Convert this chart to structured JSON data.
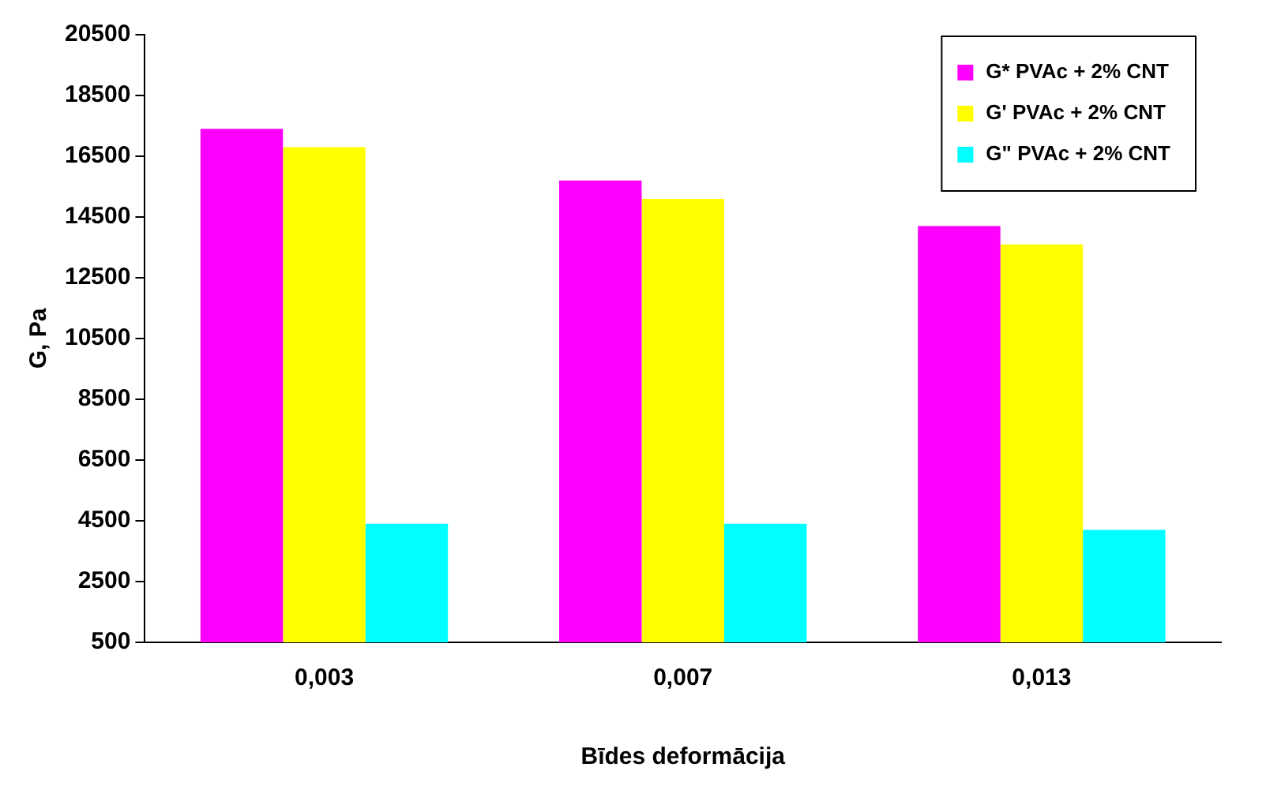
{
  "chart_data": {
    "type": "bar",
    "xlabel": "Bīdes deformācija",
    "ylabel": "G, Pa",
    "categories": [
      "0,003",
      "0,007",
      "0,013"
    ],
    "series": [
      {
        "name": "G* PVAc + 2% CNT",
        "color": "#ff00ff",
        "values": [
          17400,
          15700,
          14200
        ]
      },
      {
        "name": "G' PVAc + 2% CNT",
        "color": "#ffff00",
        "values": [
          16800,
          15100,
          13600
        ]
      },
      {
        "name": "G\" PVAc + 2% CNT",
        "color": "#00ffff",
        "values": [
          4400,
          4400,
          4200
        ]
      }
    ],
    "ylim": [
      500,
      20500
    ],
    "yticks": [
      500,
      2500,
      4500,
      6500,
      8500,
      10500,
      12500,
      14500,
      16500,
      18500,
      20500
    ],
    "grid": false,
    "legend": "top right"
  }
}
